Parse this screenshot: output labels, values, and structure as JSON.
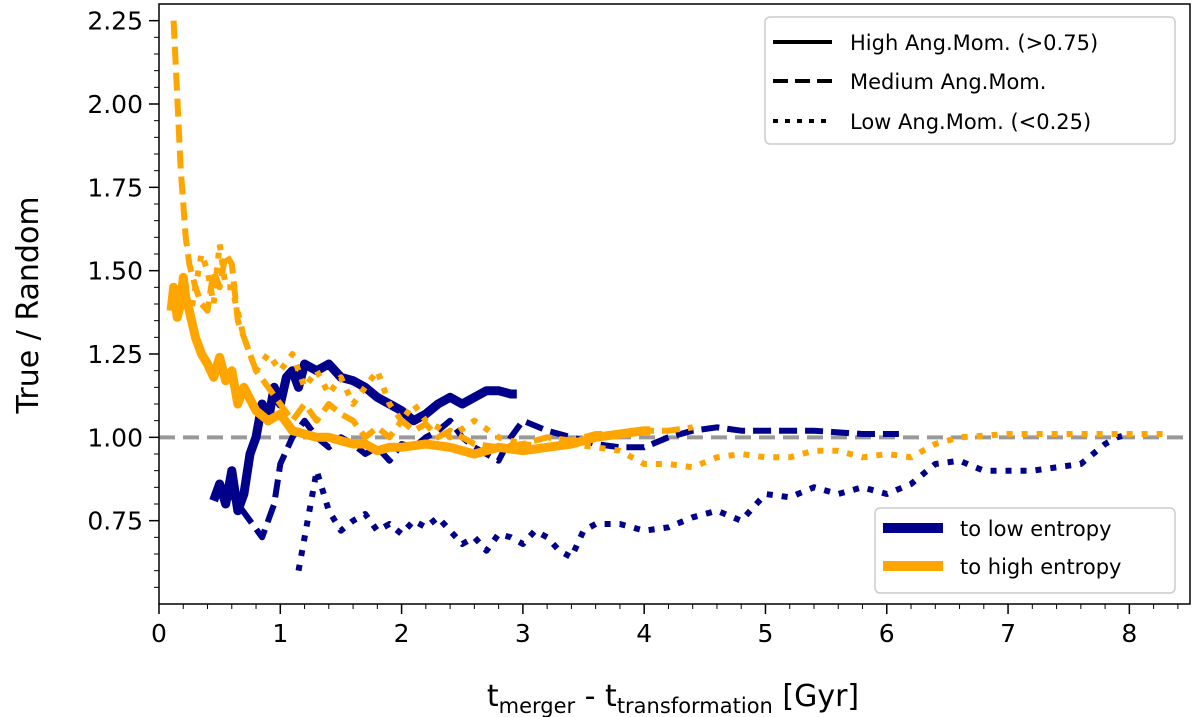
{
  "chart_data": {
    "type": "line",
    "title": "",
    "xlabel": {
      "main1": "t",
      "sub1": "merger",
      "mid": " - t",
      "sub2": "transformation",
      "end": " [Gyr]"
    },
    "ylabel": "True / Random",
    "xlim": [
      0,
      8.5
    ],
    "ylim": [
      0.5,
      2.3
    ],
    "x_ticks": [
      {
        "value": 0,
        "label": "0"
      },
      {
        "value": 1,
        "label": "1"
      },
      {
        "value": 2,
        "label": "2"
      },
      {
        "value": 3,
        "label": "3"
      },
      {
        "value": 4,
        "label": "4"
      },
      {
        "value": 5,
        "label": "5"
      },
      {
        "value": 6,
        "label": "6"
      },
      {
        "value": 7,
        "label": "7"
      },
      {
        "value": 8,
        "label": "8"
      }
    ],
    "y_ticks": [
      {
        "value": 0.75,
        "label": "0.75"
      },
      {
        "value": 1.0,
        "label": "1.00"
      },
      {
        "value": 1.25,
        "label": "1.25"
      },
      {
        "value": 1.5,
        "label": "1.50"
      },
      {
        "value": 1.75,
        "label": "1.75"
      },
      {
        "value": 2.0,
        "label": "2.00"
      },
      {
        "value": 2.25,
        "label": "2.25"
      }
    ],
    "reference_line": {
      "y": 1.0,
      "style": "dashed",
      "color": "#999999"
    },
    "colors": {
      "low_entropy": "#00008b",
      "high_entropy": "#ffa500"
    },
    "series": [
      {
        "name": "low entropy, high ang. mom.",
        "color_key": "low_entropy",
        "style": "solid",
        "x": [
          0.45,
          0.5,
          0.55,
          0.6,
          0.65,
          0.7,
          0.75,
          0.8,
          0.85,
          0.9,
          0.95,
          1.0,
          1.05,
          1.1,
          1.15,
          1.2,
          1.3,
          1.4,
          1.5,
          1.6,
          1.7,
          1.8,
          1.9,
          2.0,
          2.1,
          2.2,
          2.3,
          2.4,
          2.5,
          2.6,
          2.7,
          2.8,
          2.9,
          2.95
        ],
        "y": [
          0.81,
          0.86,
          0.8,
          0.9,
          0.78,
          0.83,
          0.95,
          1.0,
          1.1,
          1.05,
          1.15,
          1.1,
          1.18,
          1.2,
          1.15,
          1.22,
          1.2,
          1.22,
          1.18,
          1.17,
          1.15,
          1.12,
          1.1,
          1.08,
          1.05,
          1.07,
          1.1,
          1.12,
          1.1,
          1.12,
          1.14,
          1.14,
          1.13,
          1.13
        ]
      },
      {
        "name": "low entropy, medium ang. mom.",
        "color_key": "low_entropy",
        "style": "dashed",
        "x": [
          0.55,
          0.65,
          0.75,
          0.85,
          0.95,
          1.0,
          1.1,
          1.2,
          1.3,
          1.4,
          1.5,
          1.6,
          1.7,
          1.8,
          1.9,
          2.0,
          2.1,
          2.2,
          2.3,
          2.4,
          2.5,
          2.6,
          2.7,
          2.8,
          2.9,
          3.0,
          3.2,
          3.4,
          3.6,
          3.8,
          4.0,
          4.2,
          4.4,
          4.6,
          4.8,
          5.0,
          5.4,
          5.8,
          6.1
        ],
        "y": [
          0.85,
          0.8,
          0.75,
          0.7,
          0.8,
          0.92,
          1.0,
          1.05,
          1.0,
          0.97,
          1.0,
          0.98,
          0.95,
          0.97,
          0.93,
          0.98,
          0.97,
          1.0,
          1.02,
          1.05,
          1.0,
          0.97,
          0.95,
          0.93,
          1.0,
          1.05,
          1.02,
          1.0,
          0.98,
          0.97,
          0.97,
          1.0,
          1.02,
          1.03,
          1.02,
          1.02,
          1.02,
          1.01,
          1.01
        ]
      },
      {
        "name": "low entropy, low ang. mom.",
        "color_key": "low_entropy",
        "style": "dotted",
        "x": [
          1.15,
          1.2,
          1.3,
          1.4,
          1.5,
          1.6,
          1.7,
          1.8,
          1.9,
          2.0,
          2.1,
          2.2,
          2.3,
          2.4,
          2.5,
          2.6,
          2.7,
          2.8,
          2.9,
          3.0,
          3.1,
          3.2,
          3.3,
          3.4,
          3.5,
          3.6,
          3.8,
          4.0,
          4.2,
          4.4,
          4.6,
          4.8,
          5.0,
          5.2,
          5.4,
          5.6,
          5.8,
          6.0,
          6.2,
          6.4,
          6.6,
          6.8,
          7.0,
          7.2,
          7.4,
          7.6,
          7.8,
          7.9,
          8.0
        ],
        "y": [
          0.6,
          0.7,
          0.9,
          0.78,
          0.72,
          0.75,
          0.77,
          0.72,
          0.74,
          0.71,
          0.75,
          0.73,
          0.76,
          0.72,
          0.68,
          0.7,
          0.66,
          0.71,
          0.7,
          0.68,
          0.72,
          0.7,
          0.66,
          0.64,
          0.72,
          0.74,
          0.74,
          0.72,
          0.73,
          0.76,
          0.78,
          0.75,
          0.83,
          0.82,
          0.85,
          0.83,
          0.85,
          0.83,
          0.86,
          0.92,
          0.93,
          0.9,
          0.9,
          0.9,
          0.91,
          0.92,
          0.98,
          1.0,
          1.01
        ]
      },
      {
        "name": "high entropy, high ang. mom.",
        "color_key": "high_entropy",
        "style": "solid",
        "x": [
          0.1,
          0.12,
          0.15,
          0.18,
          0.2,
          0.22,
          0.25,
          0.3,
          0.35,
          0.4,
          0.45,
          0.5,
          0.55,
          0.6,
          0.65,
          0.7,
          0.8,
          0.9,
          1.0,
          1.1,
          1.2,
          1.3,
          1.4,
          1.5,
          1.6,
          1.7,
          1.8,
          1.9,
          2.0,
          2.2,
          2.4,
          2.6,
          2.8,
          3.0,
          3.2,
          3.4,
          3.6,
          3.8,
          4.0,
          4.05
        ],
        "y": [
          1.38,
          1.45,
          1.36,
          1.4,
          1.48,
          1.42,
          1.38,
          1.3,
          1.25,
          1.22,
          1.18,
          1.24,
          1.17,
          1.2,
          1.1,
          1.15,
          1.08,
          1.05,
          1.07,
          1.02,
          1.01,
          1.0,
          1.0,
          0.99,
          0.98,
          0.98,
          0.96,
          0.97,
          0.97,
          0.98,
          0.97,
          0.95,
          0.97,
          0.96,
          0.97,
          0.98,
          1.0,
          1.01,
          1.02,
          1.02
        ]
      },
      {
        "name": "high entropy, medium ang. mom.",
        "color_key": "high_entropy",
        "style": "dashed",
        "x": [
          0.12,
          0.14,
          0.16,
          0.18,
          0.2,
          0.22,
          0.25,
          0.3,
          0.35,
          0.4,
          0.45,
          0.5,
          0.55,
          0.6,
          0.65,
          0.7,
          0.8,
          0.9,
          1.0,
          1.1,
          1.2,
          1.3,
          1.4,
          1.5,
          1.6,
          1.7,
          1.8,
          1.9,
          2.0,
          2.1,
          2.2,
          2.3,
          2.4,
          2.5,
          2.6,
          2.8,
          3.0,
          3.2,
          3.4,
          3.6,
          3.8,
          4.0,
          4.2,
          4.4
        ],
        "y": [
          2.25,
          2.1,
          1.95,
          1.8,
          1.7,
          1.6,
          1.52,
          1.45,
          1.4,
          1.38,
          1.5,
          1.45,
          1.55,
          1.52,
          1.35,
          1.3,
          1.2,
          1.15,
          1.1,
          1.05,
          1.1,
          1.05,
          1.1,
          1.07,
          1.05,
          1.0,
          1.03,
          1.0,
          1.05,
          1.02,
          1.04,
          1.0,
          1.02,
          1.0,
          0.98,
          0.97,
          0.98,
          1.0,
          0.99,
          1.01,
          1.01,
          1.02,
          1.02,
          1.03
        ]
      },
      {
        "name": "high entropy, low ang. mom.",
        "color_key": "high_entropy",
        "style": "dotted",
        "x": [
          0.25,
          0.3,
          0.35,
          0.4,
          0.45,
          0.5,
          0.55,
          0.6,
          0.7,
          0.8,
          0.9,
          1.0,
          1.1,
          1.2,
          1.3,
          1.4,
          1.5,
          1.6,
          1.7,
          1.8,
          1.9,
          2.0,
          2.1,
          2.2,
          2.3,
          2.4,
          2.6,
          2.8,
          3.0,
          3.2,
          3.4,
          3.6,
          3.8,
          4.0,
          4.2,
          4.4,
          4.6,
          4.8,
          5.0,
          5.2,
          5.4,
          5.6,
          5.8,
          6.0,
          6.2,
          6.4,
          6.6,
          7.0,
          7.5,
          8.0,
          8.3
        ],
        "y": [
          1.35,
          1.45,
          1.55,
          1.5,
          1.4,
          1.58,
          1.45,
          1.45,
          1.3,
          1.2,
          1.25,
          1.2,
          1.25,
          1.15,
          1.2,
          1.13,
          1.18,
          1.1,
          1.15,
          1.2,
          1.1,
          1.05,
          1.1,
          1.05,
          1.03,
          1.0,
          1.05,
          1.0,
          0.98,
          0.97,
          0.98,
          0.97,
          0.96,
          0.92,
          0.92,
          0.91,
          0.94,
          0.95,
          0.94,
          0.94,
          0.96,
          0.96,
          0.94,
          0.95,
          0.94,
          0.98,
          1.0,
          1.01,
          1.01,
          1.01,
          1.01
        ]
      }
    ],
    "legend_styles": {
      "position": "top-right",
      "entries": [
        {
          "label": "High Ang.Mom. (>0.75)",
          "style": "solid"
        },
        {
          "label": "Medium Ang.Mom.",
          "style": "dashed"
        },
        {
          "label": "Low Ang.Mom. (<0.25)",
          "style": "dotted"
        }
      ]
    },
    "legend_colors": {
      "position": "bottom-right",
      "entries": [
        {
          "label": "to low entropy",
          "color_key": "low_entropy"
        },
        {
          "label": "to high entropy",
          "color_key": "high_entropy"
        }
      ]
    }
  }
}
